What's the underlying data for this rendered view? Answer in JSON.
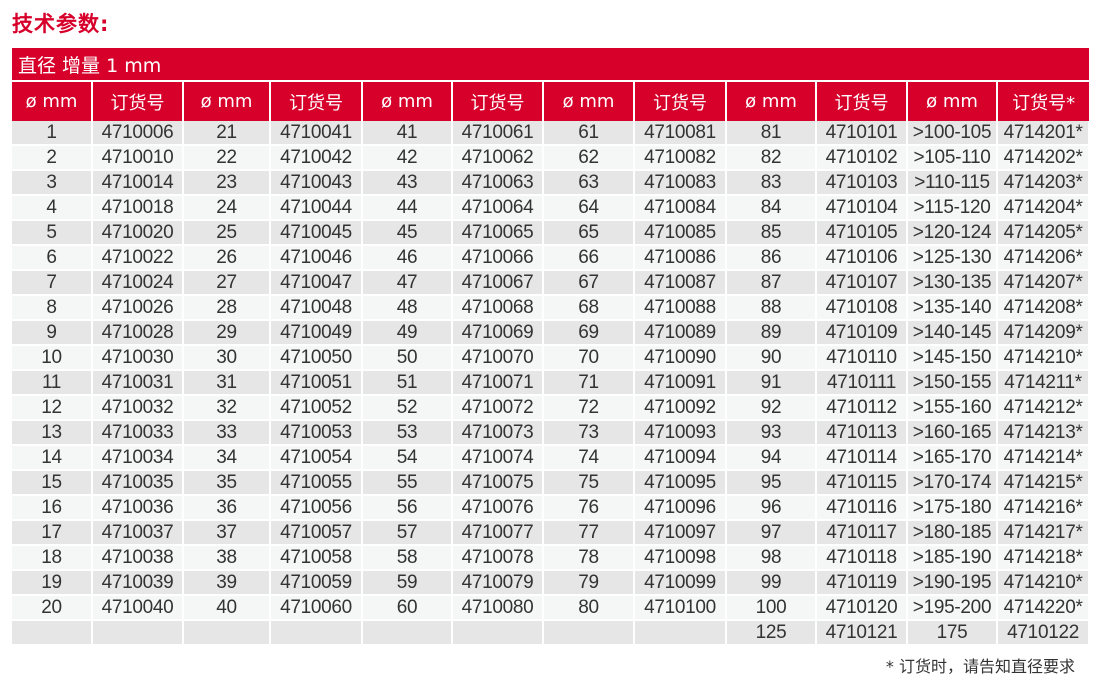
{
  "title": "技术参数:",
  "caption": "直径 增量 1 mm",
  "headers": [
    "ø mm",
    "订货号",
    "ø mm",
    "订货号",
    "ø mm",
    "订货号",
    "ø mm",
    "订货号",
    "ø mm",
    "订货号",
    "ø mm",
    "订货号*"
  ],
  "rows": [
    [
      "1",
      "4710006",
      "21",
      "4710041",
      "41",
      "4710061",
      "61",
      "4710081",
      "81",
      "4710101",
      ">100-105",
      "4714201*"
    ],
    [
      "2",
      "4710010",
      "22",
      "4710042",
      "42",
      "4710062",
      "62",
      "4710082",
      "82",
      "4710102",
      ">105-110",
      "4714202*"
    ],
    [
      "3",
      "4710014",
      "23",
      "4710043",
      "43",
      "4710063",
      "63",
      "4710083",
      "83",
      "4710103",
      ">110-115",
      "4714203*"
    ],
    [
      "4",
      "4710018",
      "24",
      "4710044",
      "44",
      "4710064",
      "64",
      "4710084",
      "84",
      "4710104",
      ">115-120",
      "4714204*"
    ],
    [
      "5",
      "4710020",
      "25",
      "4710045",
      "45",
      "4710065",
      "65",
      "4710085",
      "85",
      "4710105",
      ">120-124",
      "4714205*"
    ],
    [
      "6",
      "4710022",
      "26",
      "4710046",
      "46",
      "4710066",
      "66",
      "4710086",
      "86",
      "4710106",
      ">125-130",
      "4714206*"
    ],
    [
      "7",
      "4710024",
      "27",
      "4710047",
      "47",
      "4710067",
      "67",
      "4710087",
      "87",
      "4710107",
      ">130-135",
      "4714207*"
    ],
    [
      "8",
      "4710026",
      "28",
      "4710048",
      "48",
      "4710068",
      "68",
      "4710088",
      "88",
      "4710108",
      ">135-140",
      "4714208*"
    ],
    [
      "9",
      "4710028",
      "29",
      "4710049",
      "49",
      "4710069",
      "69",
      "4710089",
      "89",
      "4710109",
      ">140-145",
      "4714209*"
    ],
    [
      "10",
      "4710030",
      "30",
      "4710050",
      "50",
      "4710070",
      "70",
      "4710090",
      "90",
      "4710110",
      ">145-150",
      "4714210*"
    ],
    [
      "11",
      "4710031",
      "31",
      "4710051",
      "51",
      "4710071",
      "71",
      "4710091",
      "91",
      "4710111",
      ">150-155",
      "4714211*"
    ],
    [
      "12",
      "4710032",
      "32",
      "4710052",
      "52",
      "4710072",
      "72",
      "4710092",
      "92",
      "4710112",
      ">155-160",
      "4714212*"
    ],
    [
      "13",
      "4710033",
      "33",
      "4710053",
      "53",
      "4710073",
      "73",
      "4710093",
      "93",
      "4710113",
      ">160-165",
      "4714213*"
    ],
    [
      "14",
      "4710034",
      "34",
      "4710054",
      "54",
      "4710074",
      "74",
      "4710094",
      "94",
      "4710114",
      ">165-170",
      "4714214*"
    ],
    [
      "15",
      "4710035",
      "35",
      "4710055",
      "55",
      "4710075",
      "75",
      "4710095",
      "95",
      "4710115",
      ">170-174",
      "4714215*"
    ],
    [
      "16",
      "4710036",
      "36",
      "4710056",
      "56",
      "4710076",
      "76",
      "4710096",
      "96",
      "4710116",
      ">175-180",
      "4714216*"
    ],
    [
      "17",
      "4710037",
      "37",
      "4710057",
      "57",
      "4710077",
      "77",
      "4710097",
      "97",
      "4710117",
      ">180-185",
      "4714217*"
    ],
    [
      "18",
      "4710038",
      "38",
      "4710058",
      "58",
      "4710078",
      "78",
      "4710098",
      "98",
      "4710118",
      ">185-190",
      "4714218*"
    ],
    [
      "19",
      "4710039",
      "39",
      "4710059",
      "59",
      "4710079",
      "79",
      "4710099",
      "99",
      "4710119",
      ">190-195",
      "4714210*"
    ],
    [
      "20",
      "4710040",
      "40",
      "4710060",
      "60",
      "4710080",
      "80",
      "4710100",
      "100",
      "4710120",
      ">195-200",
      "4714220*"
    ],
    [
      "",
      "",
      "",
      "",
      "",
      "",
      "",
      "",
      "125",
      "4710121",
      "175",
      "4710122"
    ]
  ],
  "footnote": "* 订货时，请告知直径要求",
  "colors": {
    "accent": "#d6002a",
    "row_odd": "#e6e6e6",
    "row_even": "#f5f7f7"
  }
}
